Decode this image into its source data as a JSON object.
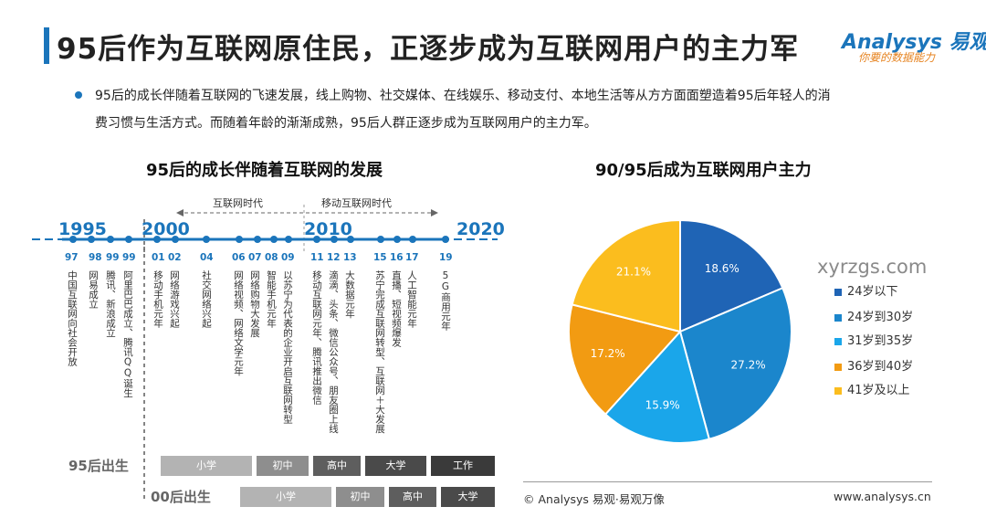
{
  "header": {
    "title": "95后作为互联网原住民，正逐步成为互联网用户的主力军",
    "logo": "Analysys 易观",
    "logo_slogan": "你要的数据能力"
  },
  "intro": {
    "line1": "95后的成长伴随着互联网的飞速发展，线上购物、社交媒体、在线娱乐、移动支付、本地生活等从方方面面塑造着95后年轻人的消",
    "line2": "费习惯与生活方式。而随着年龄的渐渐成熟，95后人群正逐步成为互联网用户的主力军。"
  },
  "timeline": {
    "title": "95后的成长伴随着互联网的发展",
    "eras": [
      "互联网时代",
      "移动互联网时代"
    ],
    "major_years": [
      "1995",
      "2000",
      "2010",
      "2020"
    ],
    "events": [
      {
        "year": "97",
        "text": "中国互联网向社会开放"
      },
      {
        "year": "98",
        "text": "网易成立"
      },
      {
        "year": "99",
        "text": "腾讯、新浪成立"
      },
      {
        "year": "99",
        "text": "阿里巴巴成立、腾讯QQ诞生"
      },
      {
        "year": "01",
        "text": "移动手机元年"
      },
      {
        "year": "02",
        "text": "网络游戏兴起"
      },
      {
        "year": "04",
        "text": "社交网络兴起"
      },
      {
        "year": "06",
        "text": "网络视频、网络文学元年"
      },
      {
        "year": "07",
        "text": "网络购物大发展"
      },
      {
        "year": "08",
        "text": "智能手机元年"
      },
      {
        "year": "09",
        "text": "以苏宁为代表的企业开启互联网转型"
      },
      {
        "year": "11",
        "text": "移动互联网元年、腾讯推出微信"
      },
      {
        "year": "12",
        "text": "滴滴、头条、微信公众号、朋友圈上线"
      },
      {
        "year": "13",
        "text": "大数据元年"
      },
      {
        "year": "15",
        "text": "苏宁完成互联网转型、互联网＋大发展"
      },
      {
        "year": "16",
        "text": "直播、短视频爆发"
      },
      {
        "year": "17",
        "text": "人工智能元年"
      },
      {
        "year": "19",
        "text": "5G商用元年"
      }
    ],
    "cohorts": [
      {
        "label": "95后出生",
        "stages": [
          "小学",
          "初中",
          "高中",
          "大学",
          "工作"
        ]
      },
      {
        "label": "00后出生",
        "stages": [
          "小学",
          "初中",
          "高中",
          "大学"
        ]
      }
    ]
  },
  "chart_data": {
    "type": "pie",
    "title": "90/95后成为互联网用户主力",
    "categories": [
      "24岁以下",
      "24岁到30岁",
      "31岁到35岁",
      "36岁到40岁",
      "41岁及以上"
    ],
    "values": [
      18.6,
      27.2,
      15.9,
      17.2,
      21.1
    ],
    "labels": [
      "18.6%",
      "27.2%",
      "15.9%",
      "17.2%",
      "21.1%"
    ],
    "colors": [
      "#1f64b5",
      "#1b86cc",
      "#1aa6ea",
      "#f29b12",
      "#fbbd1e"
    ],
    "legend_position": "right"
  },
  "footer": {
    "source": "© Analysys 易观·易观万像",
    "url": "www.analysys.cn"
  },
  "watermark": "xyrzgs.com"
}
